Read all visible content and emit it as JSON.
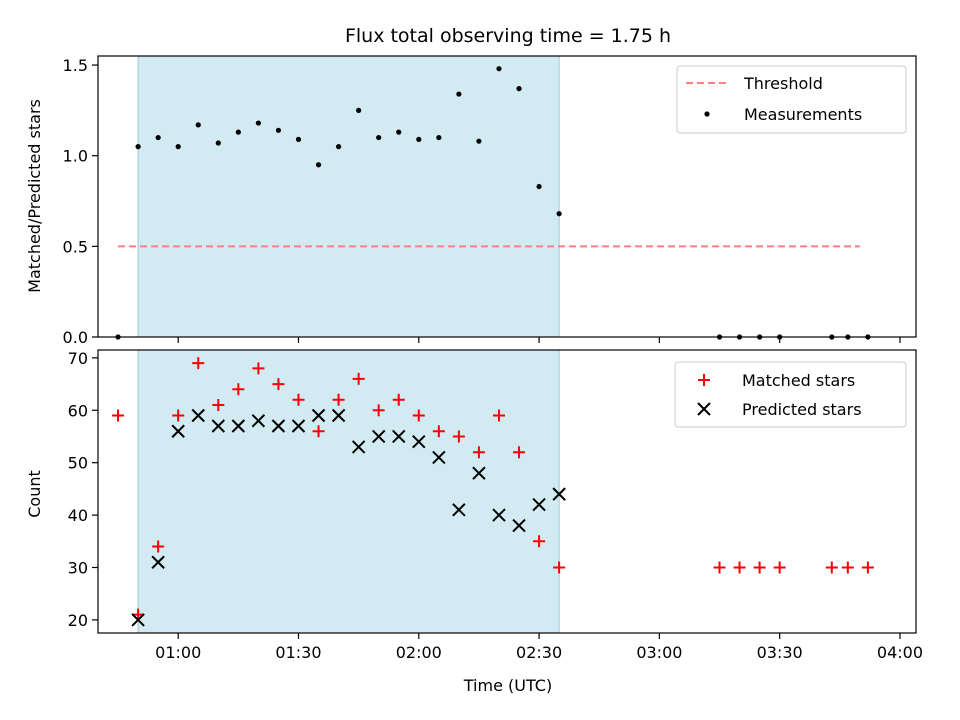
{
  "chart_data": [
    {
      "type": "scatter",
      "title": "Flux total observing time = 1.75 h",
      "xlabel": "",
      "ylabel": "Matched/Predicted stars",
      "xlim": [
        "00:40",
        "04:04"
      ],
      "ylim": [
        0,
        1.55
      ],
      "yticks": [
        "0.0",
        "0.5",
        "1.0",
        "1.5"
      ],
      "grid": false,
      "legend": "top-right",
      "observing_window": {
        "start": "00:50",
        "end": "02:35",
        "color": "#add8e6"
      },
      "threshold": {
        "name": "Threshold",
        "y": 0.5,
        "x_start": "00:45",
        "x_end": "03:50",
        "color": "#ff7f7f",
        "style": "dashed"
      },
      "series": [
        {
          "name": "Measurements",
          "color": "#000000",
          "marker": "dot",
          "x": [
            "00:45",
            "00:50",
            "00:55",
            "01:00",
            "01:05",
            "01:10",
            "01:15",
            "01:20",
            "01:25",
            "01:30",
            "01:35",
            "01:40",
            "01:45",
            "01:50",
            "01:55",
            "02:00",
            "02:05",
            "02:10",
            "02:15",
            "02:20",
            "02:25",
            "02:30",
            "02:35",
            "03:15",
            "03:20",
            "03:25",
            "03:30",
            "03:43",
            "03:47",
            "03:52"
          ],
          "y": [
            0.0,
            1.05,
            1.1,
            1.05,
            1.17,
            1.07,
            1.13,
            1.18,
            1.14,
            1.09,
            0.95,
            1.05,
            1.25,
            1.1,
            1.13,
            1.09,
            1.1,
            1.34,
            1.08,
            1.48,
            1.37,
            0.83,
            0.68,
            0.0,
            0.0,
            0.0,
            0.0,
            0.0,
            0.0,
            0.0
          ]
        }
      ]
    },
    {
      "type": "scatter",
      "title": "",
      "xlabel": "Time (UTC)",
      "ylabel": "Count",
      "xlim": [
        "00:40",
        "04:04"
      ],
      "ylim": [
        17.5,
        71.5
      ],
      "yticks": [
        "20",
        "30",
        "40",
        "50",
        "60",
        "70"
      ],
      "xticks": [
        "01:00",
        "01:30",
        "02:00",
        "02:30",
        "03:00",
        "03:30",
        "04:00"
      ],
      "grid": false,
      "legend": "top-right",
      "observing_window": {
        "start": "00:50",
        "end": "02:35",
        "color": "#add8e6"
      },
      "series": [
        {
          "name": "Matched stars",
          "color": "#ff0000",
          "marker": "plus",
          "x": [
            "00:45",
            "00:50",
            "00:55",
            "01:00",
            "01:05",
            "01:10",
            "01:15",
            "01:20",
            "01:25",
            "01:30",
            "01:35",
            "01:40",
            "01:45",
            "01:50",
            "01:55",
            "02:00",
            "02:05",
            "02:10",
            "02:15",
            "02:20",
            "02:25",
            "02:30",
            "02:35",
            "03:15",
            "03:20",
            "03:25",
            "03:30",
            "03:43",
            "03:47",
            "03:52"
          ],
          "y": [
            59,
            21,
            34,
            59,
            69,
            61,
            64,
            68,
            65,
            62,
            56,
            62,
            66,
            60,
            62,
            59,
            56,
            55,
            52,
            59,
            52,
            35,
            30,
            30,
            30,
            30,
            30,
            30,
            30,
            30
          ]
        },
        {
          "name": "Predicted stars",
          "color": "#000000",
          "marker": "x",
          "x": [
            "00:50",
            "00:55",
            "01:00",
            "01:05",
            "01:10",
            "01:15",
            "01:20",
            "01:25",
            "01:30",
            "01:35",
            "01:40",
            "01:45",
            "01:50",
            "01:55",
            "02:00",
            "02:05",
            "02:10",
            "02:15",
            "02:20",
            "02:25",
            "02:30",
            "02:35"
          ],
          "y": [
            20,
            31,
            56,
            59,
            57,
            57,
            58,
            57,
            57,
            59,
            59,
            53,
            55,
            55,
            54,
            51,
            41,
            48,
            40,
            38,
            42,
            44
          ]
        }
      ]
    }
  ]
}
